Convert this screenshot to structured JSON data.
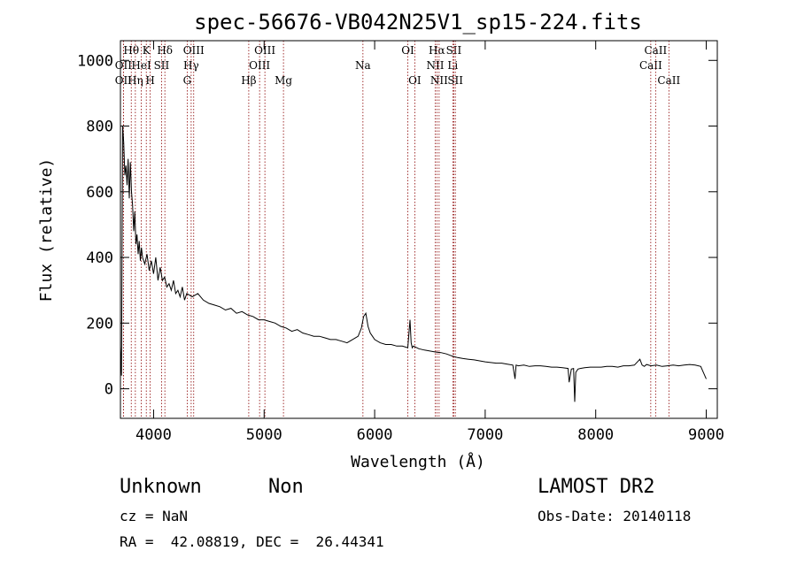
{
  "chart_data": {
    "type": "line",
    "title": "spec-56676-VB042N25V1_sp15-224.fits",
    "xlabel": "Wavelength (Å)",
    "ylabel": "Flux (relative)",
    "xlim": [
      3700,
      9100
    ],
    "ylim": [
      -90,
      1060
    ],
    "xticks": [
      4000,
      5000,
      6000,
      7000,
      8000,
      9000
    ],
    "yticks": [
      0,
      200,
      400,
      600,
      800,
      1000
    ],
    "grid": false,
    "line_color": "#000000",
    "marker_color": "#8b0000",
    "spectrum": {
      "x": [
        3700,
        3710,
        3720,
        3730,
        3740,
        3750,
        3760,
        3770,
        3780,
        3790,
        3800,
        3810,
        3820,
        3830,
        3840,
        3850,
        3860,
        3870,
        3880,
        3890,
        3900,
        3920,
        3940,
        3960,
        3980,
        4000,
        4020,
        4040,
        4060,
        4080,
        4100,
        4120,
        4140,
        4160,
        4180,
        4200,
        4220,
        4240,
        4260,
        4280,
        4300,
        4350,
        4400,
        4450,
        4500,
        4550,
        4600,
        4650,
        4700,
        4750,
        4800,
        4850,
        4900,
        4950,
        5000,
        5050,
        5100,
        5150,
        5200,
        5250,
        5300,
        5350,
        5400,
        5450,
        5500,
        5550,
        5600,
        5650,
        5700,
        5750,
        5800,
        5850,
        5880,
        5900,
        5920,
        5940,
        5960,
        5980,
        6000,
        6050,
        6100,
        6150,
        6200,
        6250,
        6300,
        6320,
        6330,
        6340,
        6350,
        6400,
        6450,
        6500,
        6550,
        6600,
        6650,
        6700,
        6750,
        6800,
        6850,
        6900,
        6950,
        7000,
        7050,
        7100,
        7150,
        7200,
        7250,
        7270,
        7280,
        7300,
        7350,
        7400,
        7450,
        7500,
        7550,
        7600,
        7650,
        7700,
        7750,
        7760,
        7780,
        7800,
        7810,
        7820,
        7840,
        7860,
        7900,
        7950,
        8000,
        8050,
        8100,
        8150,
        8200,
        8250,
        8300,
        8350,
        8400,
        8420,
        8440,
        8460,
        8500,
        8550,
        8600,
        8650,
        8700,
        8750,
        8800,
        8850,
        8900,
        8950,
        9000
      ],
      "y": [
        130,
        40,
        800,
        750,
        650,
        680,
        620,
        700,
        580,
        690,
        600,
        560,
        480,
        540,
        440,
        470,
        410,
        450,
        390,
        430,
        400,
        380,
        410,
        360,
        390,
        350,
        400,
        330,
        370,
        330,
        340,
        310,
        320,
        300,
        330,
        290,
        300,
        280,
        310,
        270,
        290,
        280,
        290,
        270,
        260,
        255,
        250,
        240,
        245,
        230,
        235,
        225,
        220,
        210,
        210,
        205,
        200,
        190,
        185,
        175,
        180,
        170,
        165,
        160,
        160,
        155,
        150,
        150,
        145,
        140,
        150,
        160,
        185,
        220,
        230,
        190,
        170,
        160,
        150,
        140,
        135,
        135,
        130,
        130,
        125,
        210,
        140,
        125,
        130,
        122,
        118,
        115,
        112,
        110,
        106,
        100,
        95,
        92,
        90,
        88,
        85,
        82,
        80,
        78,
        78,
        75,
        72,
        30,
        72,
        70,
        72,
        68,
        70,
        70,
        68,
        66,
        66,
        64,
        62,
        20,
        60,
        62,
        -40,
        50,
        60,
        62,
        64,
        66,
        66,
        66,
        68,
        68,
        66,
        70,
        70,
        72,
        90,
        72,
        68,
        74,
        70,
        72,
        68,
        70,
        72,
        70,
        72,
        74,
        72,
        68,
        30
      ]
    },
    "lines": [
      {
        "name": "Hθ",
        "x": 3798,
        "row": 1
      },
      {
        "name": "OII",
        "x": 3727,
        "row": 2
      },
      {
        "name": "OII",
        "x": 3727,
        "row": 3
      },
      {
        "name": "Hη",
        "x": 3835,
        "row": 3
      },
      {
        "name": "HeI",
        "x": 3889,
        "row": 2
      },
      {
        "name": "K",
        "x": 3934,
        "row": 1
      },
      {
        "name": "H",
        "x": 3969,
        "row": 3
      },
      {
        "name": "SII",
        "x": 4072,
        "row": 2
      },
      {
        "name": "Hδ",
        "x": 4102,
        "row": 1
      },
      {
        "name": "G",
        "x": 4304,
        "row": 3
      },
      {
        "name": "Hγ",
        "x": 4340,
        "row": 2
      },
      {
        "name": "OIII",
        "x": 4363,
        "row": 1
      },
      {
        "name": "Hβ",
        "x": 4861,
        "row": 3
      },
      {
        "name": "OIII",
        "x": 4959,
        "row": 2
      },
      {
        "name": "OIII",
        "x": 5007,
        "row": 1
      },
      {
        "name": "Mg",
        "x": 5175,
        "row": 3
      },
      {
        "name": "Na",
        "x": 5894,
        "row": 2
      },
      {
        "name": "OI",
        "x": 6300,
        "row": 1
      },
      {
        "name": "OI",
        "x": 6363,
        "row": 3
      },
      {
        "name": "NII",
        "x": 6548,
        "row": 2
      },
      {
        "name": "Hα",
        "x": 6563,
        "row": 1
      },
      {
        "name": "NII",
        "x": 6583,
        "row": 3
      },
      {
        "name": "Li",
        "x": 6707,
        "row": 2
      },
      {
        "name": "SII",
        "x": 6716,
        "row": 1
      },
      {
        "name": "SII",
        "x": 6730,
        "row": 3
      },
      {
        "name": "CaII",
        "x": 8498,
        "row": 2
      },
      {
        "name": "CaII",
        "x": 8542,
        "row": 1
      },
      {
        "name": "CaII",
        "x": 8662,
        "row": 3
      }
    ]
  },
  "footer": {
    "class_label": "Unknown",
    "subclass_label": "Non",
    "redshift": "cz = NaN",
    "coords": "RA =  42.08819, DEC =  26.44341",
    "survey": "LAMOST DR2",
    "obs_date": "Obs-Date: 20140118"
  }
}
